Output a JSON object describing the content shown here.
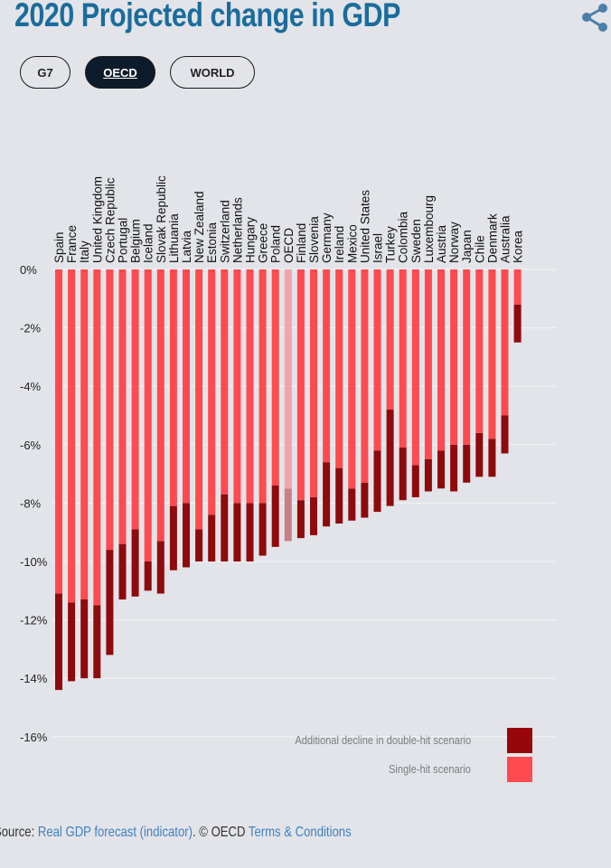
{
  "header": {
    "title": "2020 Projected change in GDP",
    "share_icon": "share-icon"
  },
  "filters": [
    {
      "label": "G7",
      "active": false
    },
    {
      "label": "OECD",
      "active": true
    },
    {
      "label": "WORLD",
      "active": false
    }
  ],
  "chart_data": {
    "type": "bar",
    "stacked": true,
    "title": "",
    "xlabel": "",
    "ylabel": "",
    "ylim": [
      -16,
      0
    ],
    "yticks": [
      "0%",
      "-2%",
      "-4%",
      "-6%",
      "-8%",
      "-10%",
      "-12%",
      "-14%",
      "-16%"
    ],
    "grid": true,
    "legend_placement": "bottom-right",
    "categories": [
      "Spain",
      "France",
      "Italy",
      "United Kingdom",
      "Czech Republic",
      "Portugal",
      "Belgium",
      "Iceland",
      "Slovak Republic",
      "Lithuania",
      "Latvia",
      "New Zealand",
      "Estonia",
      "Switzerland",
      "Netherlands",
      "Hungary",
      "Greece",
      "Poland",
      "OECD",
      "Finland",
      "Slovenia",
      "Germany",
      "Ireland",
      "Mexico",
      "United States",
      "Israel",
      "Turkey",
      "Colombia",
      "Sweden",
      "Luxembourg",
      "Austria",
      "Norway",
      "Japan",
      "Chile",
      "Denmark",
      "Australia",
      "Korea"
    ],
    "highlight_category": "OECD",
    "series": [
      {
        "name": "Single-hit scenario",
        "color": "#ff4a4f",
        "values": [
          -11.1,
          -11.4,
          -11.3,
          -11.5,
          -9.6,
          -9.4,
          -8.9,
          -10.0,
          -9.3,
          -8.1,
          -8.0,
          -8.9,
          -8.4,
          -7.7,
          -8.0,
          -8.0,
          -8.0,
          -7.4,
          -7.5,
          -7.9,
          -7.8,
          -6.6,
          -6.8,
          -7.5,
          -7.3,
          -6.2,
          -4.8,
          -6.1,
          -6.7,
          -6.5,
          -6.2,
          -6.0,
          -6.0,
          -5.6,
          -5.8,
          -5.0,
          -1.2
        ]
      },
      {
        "name": "Additional decline in double-hit scenario",
        "color": "#8e0a0c",
        "totals": [
          -14.4,
          -14.1,
          -14.0,
          -14.0,
          -13.2,
          -11.3,
          -11.2,
          -11.0,
          -11.1,
          -10.3,
          -10.2,
          -10.0,
          -10.0,
          -10.0,
          -10.0,
          -10.0,
          -9.8,
          -9.5,
          -9.3,
          -9.2,
          -9.1,
          -8.8,
          -8.7,
          -8.6,
          -8.5,
          -8.3,
          -8.1,
          -7.9,
          -7.8,
          -7.6,
          -7.5,
          -7.6,
          -7.3,
          -7.1,
          -7.1,
          -6.3,
          -2.5
        ]
      }
    ],
    "highlight_colors": {
      "single": "#f4a3aa",
      "double": "#c97f88"
    }
  },
  "legend": [
    {
      "label": "Additional decline in double-hit scenario",
      "color": "#970608"
    },
    {
      "label": "Single-hit scenario",
      "color": "#ff4a4f"
    }
  ],
  "source": {
    "prefix": "Source:",
    "link1": "Real GDP forecast (indicator)",
    "middle": ". © OECD ",
    "link2": "Terms & Conditions"
  }
}
